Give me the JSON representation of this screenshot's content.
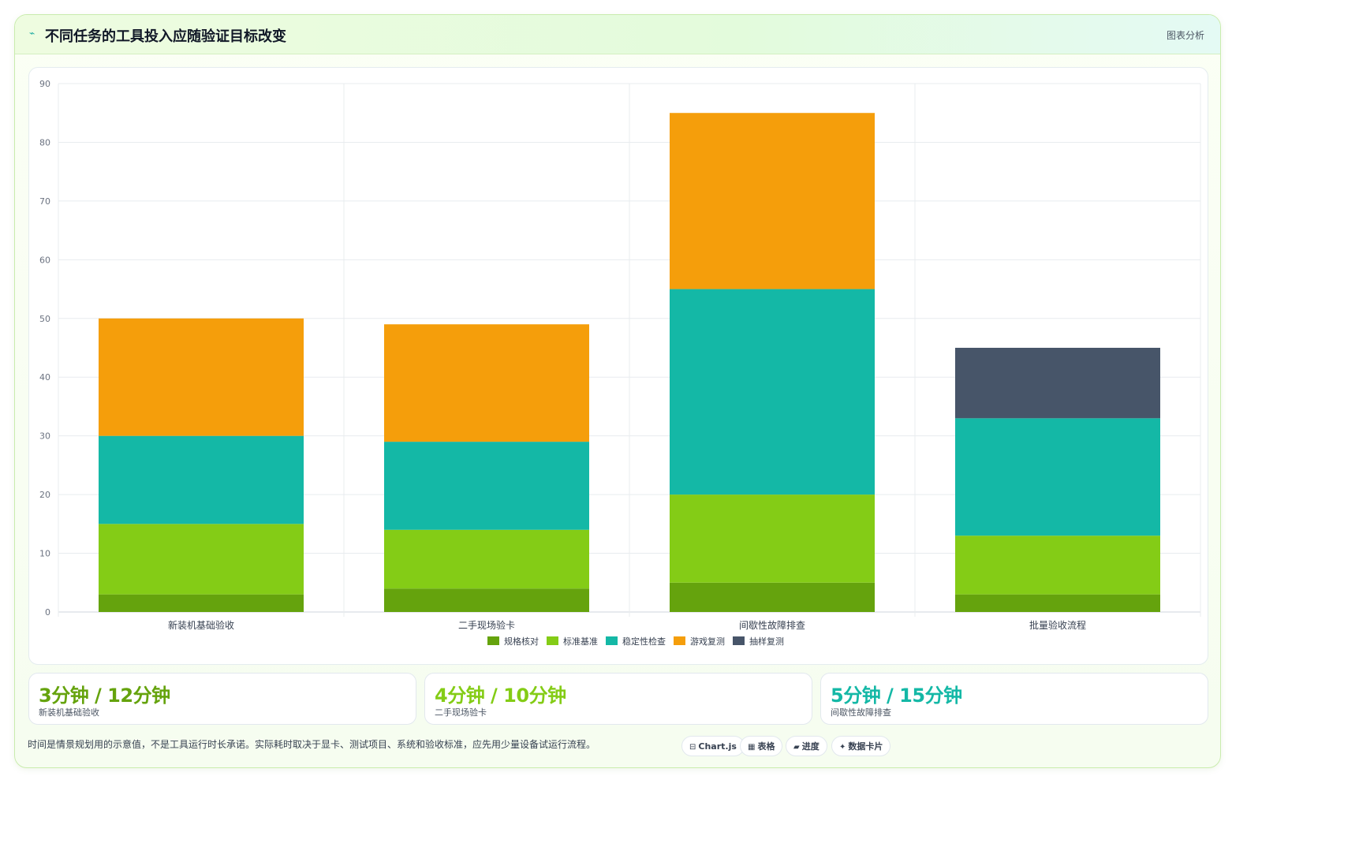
{
  "header": {
    "title": "不同任务的工具投入应随验证目标改变",
    "tag": "图表分析",
    "icon": "sparkle-icon"
  },
  "colors": {
    "规格核对": "#65a30d",
    "标准基准": "#84cc16",
    "稳定性检查": "#14b8a6",
    "游戏复测": "#f59e0b",
    "抽样复测": "#475569"
  },
  "chart_data": {
    "type": "bar",
    "stacked": true,
    "categories": [
      "新装机基础验收",
      "二手现场验卡",
      "间歇性故障排查",
      "批量验收流程"
    ],
    "series": [
      {
        "name": "规格核对",
        "values": [
          3,
          4,
          5,
          3
        ]
      },
      {
        "name": "标准基准",
        "values": [
          12,
          10,
          15,
          10
        ]
      },
      {
        "name": "稳定性检查",
        "values": [
          15,
          15,
          35,
          20
        ]
      },
      {
        "name": "游戏复测",
        "values": [
          20,
          20,
          30,
          0
        ]
      },
      {
        "name": "抽样复测",
        "values": [
          0,
          0,
          0,
          12
        ]
      }
    ],
    "ylim": [
      0,
      90
    ],
    "yticks": [
      0,
      10,
      20,
      30,
      40,
      50,
      60,
      70,
      80,
      90
    ],
    "grid": true,
    "legend": "bottom"
  },
  "stats": [
    {
      "value": "3分钟 / 12分钟",
      "label": "新装机基础验收",
      "color": "#65a30d"
    },
    {
      "value": "4分钟 / 10分钟",
      "label": "二手现场验卡",
      "color": "#84cc16"
    },
    {
      "value": "5分钟 / 15分钟",
      "label": "间歇性故障排查",
      "color": "#14b8a6"
    }
  ],
  "footer": {
    "note": "时间是情景规划用的示意值，不是工具运行时长承诺。实际耗时取决于显卡、测试项目、系统和验收标准，应先用少量设备试运行流程。",
    "pills": [
      {
        "icon": "⊟",
        "label": "Chart.js",
        "icon_name": "chart-icon"
      },
      {
        "icon": "▦",
        "label": "表格",
        "icon_name": "table-icon"
      },
      {
        "icon": "▰",
        "label": "进度",
        "icon_name": "progress-icon"
      },
      {
        "icon": "✦",
        "label": "数据卡片",
        "icon_name": "data-card-icon"
      }
    ]
  }
}
